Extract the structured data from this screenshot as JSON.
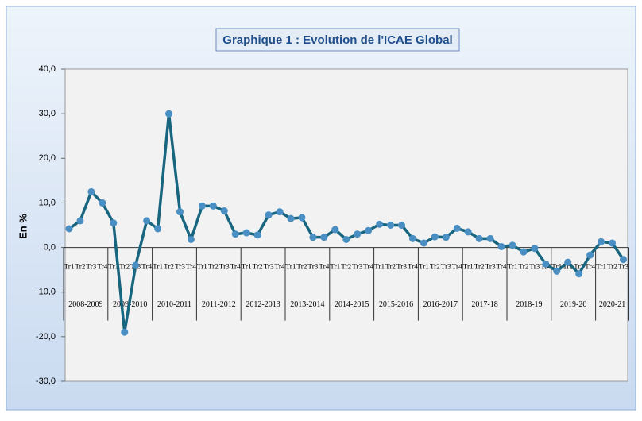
{
  "chart_data": {
    "type": "line",
    "title": "Graphique 1 : Evolution de l'ICAE Global",
    "y_label": "En %",
    "categories": [
      "Tr1",
      "Tr2",
      "Tr3",
      "Tr4",
      "Tr1",
      "Tr2",
      "Tr3",
      "Tr4",
      "Tr1",
      "Tr2",
      "Tr3",
      "Tr4",
      "Tr1",
      "Tr2",
      "Tr3",
      "Tr4",
      "Tr1",
      "Tr2",
      "Tr3",
      "Tr4",
      "Tr1",
      "Tr2",
      "Tr3",
      "Tr4",
      "Tr1",
      "Tr2",
      "Tr3",
      "Tr4",
      "Tr1",
      "Tr2",
      "Tr3",
      "Tr4",
      "Tr1",
      "Tr2",
      "Tr3",
      "Tr4",
      "Tr1",
      "Tr2",
      "Tr3",
      "Tr4",
      "Tr1",
      "Tr2",
      "Tr3",
      "Tr4",
      "Tr1",
      "Tr2",
      "Tr3",
      "Tr4",
      "Tr1",
      "Tr2",
      "Tr3"
    ],
    "groups": [
      "2008-2009",
      "2009-2010",
      "2010-2011",
      "2011-2012",
      "2012-2013",
      "2013-2014",
      "2014-2015",
      "2015-2016",
      "2016-2017",
      "2017-18",
      "2018-19",
      "2019-20",
      "2020-21"
    ],
    "series": [
      {
        "color": "#17657f",
        "marker_color": "#4a8fc4",
        "values": [
          4.2,
          6,
          12.5,
          10,
          5.5,
          -19,
          -4,
          6,
          4.2,
          30,
          8,
          1.8,
          9.3,
          9.3,
          8.2,
          3,
          3.3,
          2.8,
          7.3,
          8,
          6.5,
          6.7,
          2.3,
          2.3,
          4,
          1.8,
          3,
          3.8,
          5.2,
          5,
          5,
          2,
          1,
          2.4,
          2.3,
          4.3,
          3.5,
          2,
          2,
          0.2,
          0.5,
          -1,
          -0.2,
          -3.7,
          -5.3,
          -3.3,
          -5.9,
          -1.7,
          1.3,
          1,
          -2.7
        ]
      }
    ],
    "ylim": [
      -30,
      40
    ],
    "yticks": [
      {
        "value": -30,
        "label": "-30,0"
      },
      {
        "value": -20,
        "label": "-20,0"
      },
      {
        "value": -10,
        "label": "-10,0"
      },
      {
        "value": 0,
        "label": "0,0"
      },
      {
        "value": 10,
        "label": "10,0"
      },
      {
        "value": 20,
        "label": "20,0"
      },
      {
        "value": 30,
        "label": "30,0"
      },
      {
        "value": 40,
        "label": "40,0"
      }
    ]
  }
}
